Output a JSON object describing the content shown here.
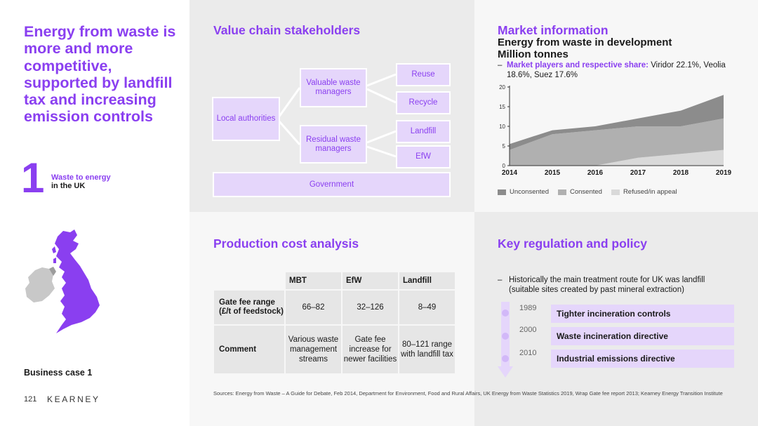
{
  "left": {
    "headline": "Energy from waste is more and more competitive, supported by landfill tax and increasing emission controls",
    "section_number": "1",
    "section_title": "Waste to energy",
    "section_subtitle": "in the UK",
    "business_case": "Business case 1",
    "page_number": "121",
    "brand": "KEARNEY"
  },
  "value_chain": {
    "title": "Value chain stakeholders",
    "local_authorities": "Local authorities",
    "valuable_waste_managers": "Valuable waste managers",
    "residual_waste_managers": "Residual waste managers",
    "reuse": "Reuse",
    "recycle": "Recycle",
    "landfill": "Landfill",
    "efw": "EfW",
    "government": "Government"
  },
  "market": {
    "title": "Market information",
    "subtitle_1": "Energy from waste in development",
    "subtitle_2": "Million tonnes",
    "bullet_dash": "–",
    "bullet_label": "Market players and respective share:",
    "bullet_text": " Viridor 22.1%, Veolia 18.6%, Suez 17.6%",
    "legend": [
      "Unconsented",
      "Consented",
      "Refused/in appeal"
    ]
  },
  "chart_data": {
    "type": "area",
    "stacked": true,
    "title": "Energy from waste in development",
    "subtitle": "Million tonnes",
    "x": [
      "2014",
      "2015",
      "2016",
      "2017",
      "2018",
      "2019"
    ],
    "ylim": [
      0,
      20
    ],
    "yticks": [
      0,
      5,
      10,
      15,
      20
    ],
    "series": [
      {
        "name": "Refused/in appeal",
        "values": [
          0,
          0,
          0,
          2,
          3,
          4
        ],
        "color": "#d9d9d9"
      },
      {
        "name": "Consented",
        "values": [
          4,
          8,
          9,
          8,
          7,
          8
        ],
        "color": "#b0b0b0"
      },
      {
        "name": "Unconsented",
        "values": [
          1.5,
          1,
          1,
          2,
          4,
          6
        ],
        "color": "#8c8c8c"
      }
    ],
    "legend_position": "bottom-left",
    "grid": false
  },
  "production": {
    "title": "Production cost analysis",
    "columns": [
      "MBT",
      "EfW",
      "Landfill"
    ],
    "rows": [
      {
        "label": "Gate fee range (£/t of feedstock)",
        "values": [
          "66–82",
          "32–126",
          "8–49"
        ]
      },
      {
        "label": "Comment",
        "values": [
          "Various waste management streams",
          "Gate fee increase for newer facilities",
          "80–121 range with landfill tax"
        ]
      }
    ]
  },
  "regulation": {
    "title": "Key regulation and policy",
    "bullet_dash": "–",
    "bullet_text": "Historically the main treatment route for UK was landfill (suitable sites created by past mineral extraction)",
    "timeline": [
      {
        "year": "1989",
        "label": "Tighter incineration controls"
      },
      {
        "year": "2000",
        "label": "Waste incineration directive"
      },
      {
        "year": "2010",
        "label": "Industrial emissions directive"
      }
    ]
  },
  "sources": "Sources: Energy from Waste – A Guide for Debate, Feb 2014, Department for Environment, Food and Rural Affairs, UK Energy from Waste Statistics 2019, Wrap Gate fee report 2013; Kearney Energy Transition Institute"
}
